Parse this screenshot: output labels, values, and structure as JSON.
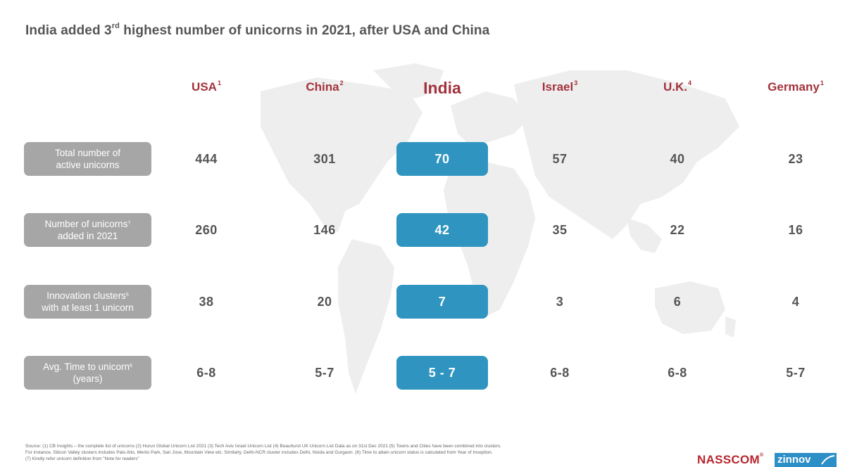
{
  "title": {
    "main": "India added 3",
    "sup": "rd",
    "rest": " highest number of unicorns in 2021, after USA and China"
  },
  "columns": [
    {
      "name": "USA",
      "sup": "1"
    },
    {
      "name": "China",
      "sup": "2"
    },
    {
      "name": "India",
      "sup": ""
    },
    {
      "name": "Israel",
      "sup": "3"
    },
    {
      "name": "U.K.",
      "sup": "4"
    },
    {
      "name": "Germany",
      "sup": "1"
    }
  ],
  "rows": [
    {
      "line1": "Total number of",
      "line1_sup": "",
      "line2": "active unicorns"
    },
    {
      "line1": "Number of unicorns",
      "line1_sup": "7",
      "line2": "added in 2021"
    },
    {
      "line1": "Innovation clusters",
      "line1_sup": "5",
      "line2": "with at least 1 unicorn"
    },
    {
      "line1": "Avg. Time to unicorn",
      "line1_sup": "6",
      "line2": "(years)"
    }
  ],
  "chart_data": {
    "type": "table",
    "title": "India added 3rd highest number of unicorns in 2021, after USA and China",
    "columns": [
      "USA",
      "China",
      "India",
      "Israel",
      "U.K.",
      "Germany"
    ],
    "row_labels": [
      "Total number of active unicorns",
      "Number of unicorns added in 2021",
      "Innovation clusters with at least 1 unicorn",
      "Avg. Time to unicorn (years)"
    ],
    "cells": [
      [
        "444",
        "301",
        "70",
        "57",
        "40",
        "23"
      ],
      [
        "260",
        "146",
        "42",
        "35",
        "22",
        "16"
      ],
      [
        "38",
        "20",
        "7",
        "3",
        "6",
        "4"
      ],
      [
        "6-8",
        "5-7",
        "5 - 7",
        "6-8",
        "6-8",
        "5-7"
      ]
    ],
    "highlight_column": "India",
    "colors": {
      "header": "#a3323c",
      "highlight": "#2f95c0",
      "row_label_bg": "#a6a6a6"
    }
  },
  "source": {
    "line1": "Source: (1) CB Insights – the complete list of unicorns (2) Hurun Global Unicorn List 2021 (3) Tech Aviv Israel Unicorn List (4) Beauhurst UK Unicorn List Data as on 31st Dec 2021 (5) Towns and Cities have been combined into clusters.",
    "line2": "For instance, Silicon Valley clusters includes Palo Alto, Menlo Park, San Jose, Mountain View etc. Similarly, Delhi-NCR cluster includes Delhi, Noida and Gurgaon. (6) Time to attain unicorn status is calculated from Year of Inception.",
    "line3": "(7) Kindly refer unicorn definition from \"Note for readers\""
  },
  "logos": {
    "nasscom": "NASSCOM",
    "nasscom_mark": "®",
    "zinnov": "zinnov"
  }
}
